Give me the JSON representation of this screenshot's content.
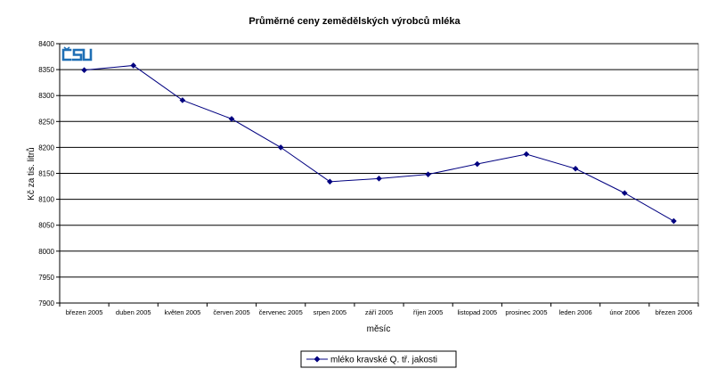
{
  "chart_data": {
    "type": "line",
    "title": "Průměrné ceny zemědělských výrobců mléka",
    "xlabel": "měsíc",
    "ylabel": "Kč za tis. litrů",
    "categories": [
      "březen 2005",
      "duben 2005",
      "květen 2005",
      "červen 2005",
      "červenec 2005",
      "srpen 2005",
      "září 2005",
      "říjen 2005",
      "listopad 2005",
      "prosinec 2005",
      "leden 2006",
      "únor 2006",
      "březen 2006"
    ],
    "series": [
      {
        "name": "mléko kravské Q. tř. jakosti",
        "values": [
          8349,
          8358,
          8291,
          8255,
          8200,
          8134,
          8140,
          8148,
          8168,
          8187,
          8159,
          8112,
          8058
        ]
      }
    ],
    "ylim": [
      7900,
      8400
    ],
    "yticks": [
      8400,
      8350,
      8300,
      8250,
      8200,
      8150,
      8100,
      8050,
      8000,
      7950,
      7900
    ],
    "grid": true,
    "legend": "bottom",
    "series_color": "#000080"
  },
  "logo_text": "ČSÚ"
}
